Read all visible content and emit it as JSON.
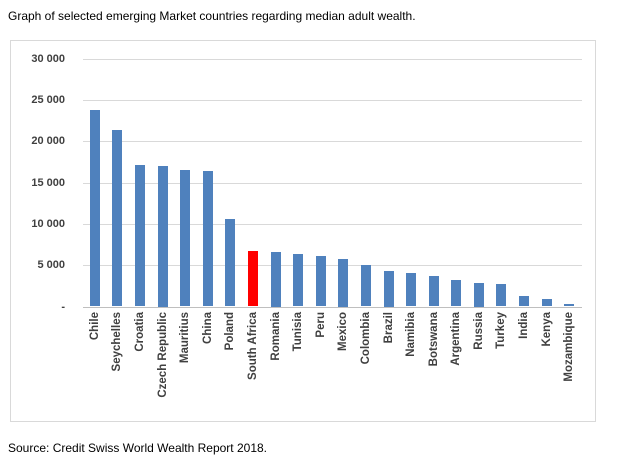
{
  "title": "Graph of selected emerging Market countries regarding median adult wealth.",
  "source": "Source: Credit Swiss World Wealth Report 2018.",
  "chart_data": {
    "type": "bar",
    "title": "Graph of selected emerging Market countries regarding median adult wealth.",
    "xlabel": "",
    "ylabel": "",
    "categories": [
      "Chile",
      "Seychelles",
      "Croatia",
      "Czech Republic",
      "Mauritius",
      "China",
      "Poland",
      "South Africa",
      "Romania",
      "Tunisia",
      "Peru",
      "Mexico",
      "Colombia",
      "Brazil",
      "Namibia",
      "Botswana",
      "Argentina",
      "Russia",
      "Turkey",
      "India",
      "Kenya",
      "Mozambique"
    ],
    "values": [
      23800,
      21400,
      17150,
      17000,
      16500,
      16350,
      10600,
      6750,
      6650,
      6300,
      6100,
      5750,
      5000,
      4300,
      4000,
      3700,
      3250,
      2900,
      2750,
      1250,
      900,
      250
    ],
    "highlight_category": "South Africa",
    "ylim": [
      0,
      30000
    ],
    "ytick_interval": 5000,
    "ytick_labels": [
      "30 000",
      "25 000",
      "20 000",
      "15 000",
      "10 000",
      "5 000",
      "-"
    ],
    "grid": true,
    "legend": "none",
    "colors": {
      "bar": "#4F81BD",
      "highlight": "#FF0000",
      "gridline": "#D9D9D9",
      "axis_line": "#BFBFBF",
      "tick_label": "#404040",
      "frame_border": "#D9D9D9"
    }
  }
}
